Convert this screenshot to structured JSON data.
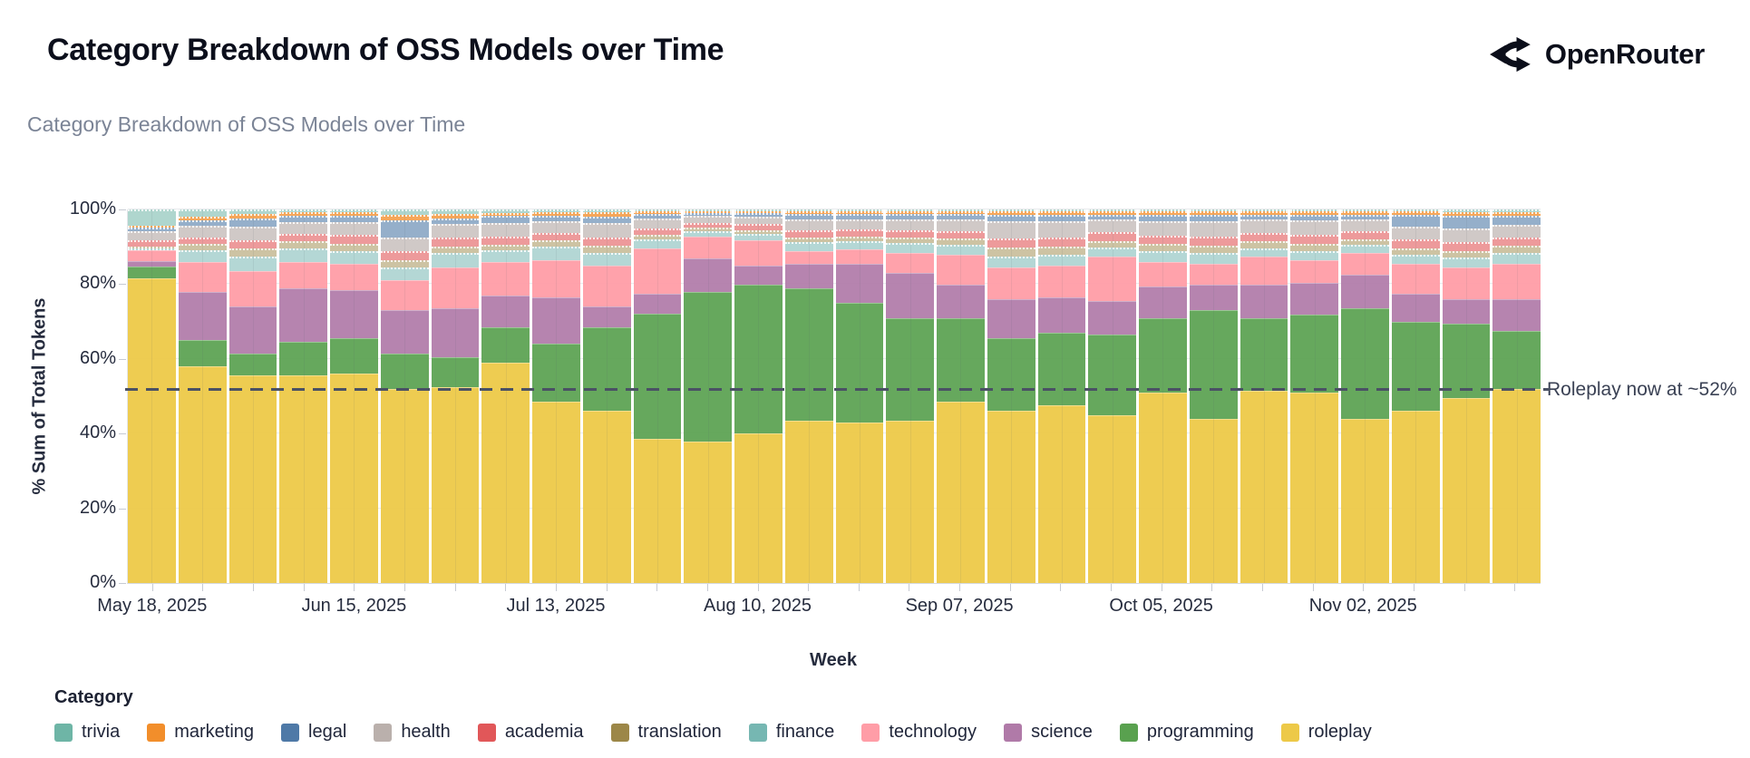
{
  "header": {
    "title": "Category Breakdown of OSS Models over Time",
    "brand": "OpenRouter"
  },
  "chart": {
    "subtitle": "Category Breakdown of OSS Models over Time",
    "y_axis": {
      "title": "% Sum of Total Tokens",
      "ticks": [
        {
          "value": 0,
          "label": "0%"
        },
        {
          "value": 20,
          "label": "20%"
        },
        {
          "value": 40,
          "label": "40%"
        },
        {
          "value": 60,
          "label": "60%"
        },
        {
          "value": 80,
          "label": "80%"
        },
        {
          "value": 100,
          "label": "100%"
        }
      ]
    },
    "x_axis": {
      "title": "Week",
      "shown_tick_labels": [
        {
          "index": 0,
          "label": "May 18, 2025"
        },
        {
          "index": 4,
          "label": "Jun 15, 2025"
        },
        {
          "index": 8,
          "label": "Jul 13, 2025"
        },
        {
          "index": 12,
          "label": "Aug 10, 2025"
        },
        {
          "index": 16,
          "label": "Sep 07, 2025"
        },
        {
          "index": 20,
          "label": "Oct 05, 2025"
        },
        {
          "index": 24,
          "label": "Nov 02, 2025"
        }
      ]
    },
    "annotation": {
      "text": "Roleplay now at ~52%",
      "y_percent": 52,
      "line_color": "#4a5164"
    },
    "legend": {
      "title": "Category",
      "items": [
        {
          "name": "trivia",
          "color": "#6EB5A6"
        },
        {
          "name": "marketing",
          "color": "#F28E2B"
        },
        {
          "name": "legal",
          "color": "#4E79A7"
        },
        {
          "name": "health",
          "color": "#BAB0AC"
        },
        {
          "name": "academia",
          "color": "#E15759"
        },
        {
          "name": "translation",
          "color": "#9C8748"
        },
        {
          "name": "finance",
          "color": "#76B7B2"
        },
        {
          "name": "technology",
          "color": "#FF9DA7"
        },
        {
          "name": "science",
          "color": "#B07AA8"
        },
        {
          "name": "programming",
          "color": "#59A14F"
        },
        {
          "name": "roleplay",
          "color": "#EDC948"
        }
      ]
    }
  },
  "chart_data": {
    "type": "bar",
    "stacked": true,
    "normalized_percent": true,
    "title": "Category Breakdown of OSS Models over Time",
    "xlabel": "Week",
    "ylabel": "% Sum of Total Tokens",
    "ylim": [
      0,
      100
    ],
    "grid": "horizontal-faint",
    "legend_position": "bottom-left",
    "x": [
      "May 18, 2025",
      "May 25, 2025",
      "Jun 01, 2025",
      "Jun 08, 2025",
      "Jun 15, 2025",
      "Jun 22, 2025",
      "Jun 29, 2025",
      "Jul 06, 2025",
      "Jul 13, 2025",
      "Jul 20, 2025",
      "Jul 27, 2025",
      "Aug 03, 2025",
      "Aug 10, 2025",
      "Aug 17, 2025",
      "Aug 24, 2025",
      "Aug 31, 2025",
      "Sep 07, 2025",
      "Sep 14, 2025",
      "Sep 21, 2025",
      "Sep 28, 2025",
      "Oct 05, 2025",
      "Oct 12, 2025",
      "Oct 19, 2025",
      "Oct 26, 2025",
      "Nov 02, 2025",
      "Nov 09, 2025",
      "Nov 16, 2025",
      "Nov 23, 2025"
    ],
    "series": [
      {
        "name": "roleplay",
        "color": "#EDC948",
        "fill": "rgba(237,201,72,0.95)",
        "muted": false,
        "values": [
          82,
          58,
          55.5,
          55.5,
          56,
          52,
          52.5,
          59,
          48.5,
          46,
          38.5,
          38,
          40,
          43.5,
          43,
          43.5,
          48.5,
          46,
          47.5,
          45,
          51,
          44,
          51.5,
          51,
          44,
          46,
          49.5,
          52
        ]
      },
      {
        "name": "programming",
        "color": "#59A14F",
        "fill": "rgba(89,161,79,0.92)",
        "muted": false,
        "values": [
          3,
          7,
          6,
          9,
          9.5,
          9.5,
          8,
          9.5,
          15.5,
          22.5,
          33.5,
          40,
          40,
          35.5,
          32,
          27.5,
          22.5,
          19.5,
          19.5,
          21.5,
          20,
          29,
          19.5,
          21,
          29.5,
          24,
          20,
          15.5
        ]
      },
      {
        "name": "science",
        "color": "#B07AA8",
        "fill": "rgba(176,122,168,0.92)",
        "muted": false,
        "values": [
          1.5,
          13,
          12.5,
          14.5,
          13,
          11.5,
          13,
          8.5,
          12.5,
          5.5,
          5.5,
          9,
          5,
          6.5,
          10.5,
          12,
          9,
          10.5,
          9.5,
          9,
          8.5,
          7,
          9,
          8.5,
          9,
          7.5,
          6.5,
          8.5
        ]
      },
      {
        "name": "technology",
        "color": "#FF9DA7",
        "fill": "rgba(255,157,167,0.95)",
        "muted": false,
        "values": [
          3,
          8,
          9.5,
          7,
          7,
          8,
          11,
          9,
          10,
          11,
          12,
          6,
          7,
          3.5,
          4,
          5.5,
          8,
          8.5,
          8.5,
          12,
          6.5,
          5.5,
          7.5,
          6,
          6,
          8,
          8.5,
          9.5
        ]
      },
      {
        "name": "finance",
        "color": "#76B7B2",
        "fill": "rgba(118,183,178,0.55)",
        "muted": true,
        "values": [
          0.4,
          3.2,
          4,
          3.6,
          3.4,
          3.4,
          3.8,
          3,
          3.6,
          3.4,
          2.4,
          1.4,
          1.6,
          2.4,
          2.2,
          2.6,
          2.6,
          3,
          2.8,
          2.4,
          2.8,
          2.8,
          2.2,
          2.4,
          2,
          2.4,
          2.6,
          2.8
        ]
      },
      {
        "name": "translation",
        "color": "#9C8748",
        "fill": "rgba(156,135,72,0.5)",
        "muted": true,
        "values": [
          0.3,
          1.6,
          2,
          1.8,
          2,
          2,
          1.8,
          1.6,
          1.6,
          1.8,
          1.2,
          0.8,
          1,
          1.2,
          1.2,
          1.4,
          1.6,
          2.4,
          2.2,
          1.8,
          2,
          2,
          1.8,
          2,
          1.6,
          1.6,
          1.8,
          2
        ]
      },
      {
        "name": "academia",
        "color": "#E15759",
        "fill": "rgba(225,87,89,0.6)",
        "muted": true,
        "values": [
          1.6,
          1.8,
          2.2,
          2,
          2.2,
          2.4,
          2.4,
          2.2,
          2,
          2.4,
          1.8,
          1.4,
          1.6,
          1.8,
          1.8,
          2,
          2,
          2.4,
          2.4,
          2.2,
          2.2,
          2.4,
          2.2,
          2.4,
          2.2,
          2.4,
          2.4,
          2.2
        ]
      },
      {
        "name": "health",
        "color": "#BAB0AC",
        "fill": "rgba(186,176,172,0.68)",
        "muted": true,
        "values": [
          2.6,
          3,
          3.6,
          3.2,
          3.4,
          3.8,
          3.6,
          3.6,
          3.2,
          3.8,
          2.6,
          1.8,
          2,
          3,
          2.8,
          3,
          3.2,
          4.6,
          4.4,
          3.4,
          4,
          4.2,
          3.6,
          3.8,
          3,
          3.4,
          3.6,
          3.4
        ]
      },
      {
        "name": "legal",
        "color": "#4E79A7",
        "fill": "rgba(78,121,167,0.6)",
        "muted": true,
        "values": [
          1,
          1.6,
          2.4,
          1.8,
          1.9,
          4.6,
          1.6,
          1.8,
          1.4,
          1.8,
          1.2,
          0.8,
          0.9,
          1.4,
          1.3,
          1.3,
          1.4,
          1.6,
          1.7,
          1.4,
          1.6,
          1.7,
          1.4,
          1.5,
          1.4,
          3.2,
          3.4,
          2.4
        ]
      },
      {
        "name": "marketing",
        "color": "#F28E2B",
        "fill": "rgba(242,142,43,0.78)",
        "muted": true,
        "values": [
          0.3,
          0.8,
          1.2,
          0.9,
          1,
          1.4,
          1.1,
          0.9,
          0.9,
          1,
          0.8,
          0.5,
          0.6,
          0.8,
          0.8,
          0.8,
          0.8,
          1,
          1,
          0.9,
          1,
          1,
          0.9,
          1,
          0.9,
          1,
          1.1,
          1.1
        ]
      },
      {
        "name": "trivia",
        "color": "#6EB5A6",
        "fill": "rgba(110,181,166,0.55)",
        "muted": true,
        "values": [
          4.3,
          2,
          1.1,
          0.7,
          0.6,
          1.4,
          1.2,
          0.9,
          0.8,
          0.8,
          0.5,
          0.3,
          0.3,
          0.4,
          0.4,
          0.4,
          0.4,
          0.5,
          0.5,
          0.4,
          0.4,
          0.4,
          0.4,
          0.4,
          0.4,
          0.5,
          0.6,
          0.6
        ]
      }
    ],
    "reference_line": {
      "y": 52,
      "style": "dashed",
      "label": "Roleplay now at ~52%"
    }
  }
}
